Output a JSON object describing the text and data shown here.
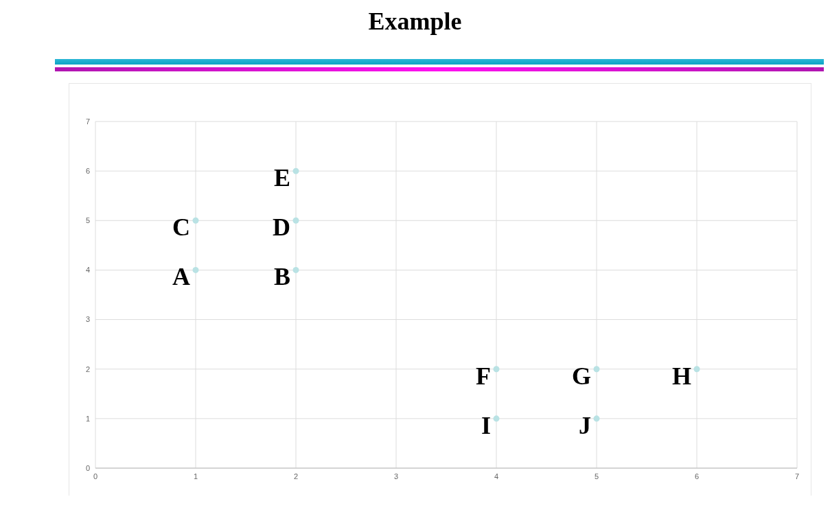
{
  "chart_data": {
    "type": "scatter",
    "title": "Example",
    "x": [
      1,
      2,
      1,
      2,
      2,
      4,
      5,
      6,
      4,
      5
    ],
    "values": [
      4,
      4,
      5,
      5,
      6,
      2,
      2,
      2,
      1,
      1
    ],
    "color": "#b9e2e4",
    "xlim": [
      0,
      7
    ],
    "xticks": [
      0,
      1,
      2,
      3,
      4,
      5,
      6,
      7
    ],
    "ylim": [
      0,
      7
    ],
    "yticks": [
      0,
      1,
      2,
      3,
      4,
      5,
      6,
      7
    ],
    "grid": true,
    "marker": "circle",
    "annotations": [
      {
        "text": "A",
        "x": 1,
        "y": 4
      },
      {
        "text": "B",
        "x": 2,
        "y": 4
      },
      {
        "text": "C",
        "x": 1,
        "y": 5
      },
      {
        "text": "D",
        "x": 2,
        "y": 5
      },
      {
        "text": "E",
        "x": 2,
        "y": 6
      },
      {
        "text": "F",
        "x": 4,
        "y": 2
      },
      {
        "text": "G",
        "x": 5,
        "y": 2
      },
      {
        "text": "H",
        "x": 6,
        "y": 2
      },
      {
        "text": "I",
        "x": 4,
        "y": 1
      },
      {
        "text": "J",
        "x": 5,
        "y": 1
      }
    ]
  }
}
